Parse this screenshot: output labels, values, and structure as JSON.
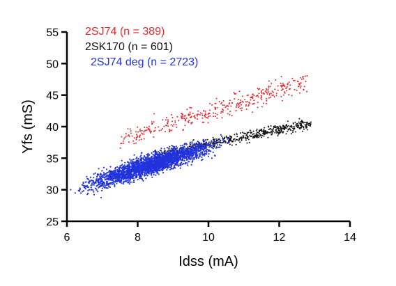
{
  "chart_data": {
    "type": "scatter",
    "xlabel": "Idss (mA)",
    "ylabel": "Yfs (mS)",
    "xlim": [
      6,
      14
    ],
    "ylim": [
      25,
      55
    ],
    "xticks": [
      "6",
      "8",
      "10",
      "12",
      "14"
    ],
    "yticks": [
      "25",
      "30",
      "35",
      "40",
      "45",
      "50",
      "55"
    ],
    "grid": false,
    "legend_position": "top-left",
    "series": [
      {
        "name": "2SJ74 (n = 389)",
        "color": "#e8262a",
        "n": 389,
        "x_range": [
          7.5,
          12.8
        ],
        "trend": {
          "x": [
            7.5,
            9.0,
            10.5,
            12.0,
            12.8
          ],
          "y": [
            38.0,
            40.5,
            43.0,
            46.0,
            47.2
          ]
        },
        "spread": 1.4
      },
      {
        "name": "2SK170 (n = 601)",
        "color": "#111111",
        "n": 601,
        "x_range": [
          8.5,
          12.9
        ],
        "trend": {
          "x": [
            8.5,
            10.0,
            11.5,
            12.9
          ],
          "y": [
            35.2,
            37.2,
            39.0,
            40.5
          ]
        },
        "spread": 0.7
      },
      {
        "name": "2SJ74 deg (n = 2723)",
        "color": "#2233dd",
        "n": 2723,
        "x_range": [
          6.0,
          10.7
        ],
        "trend": {
          "x": [
            6.0,
            7.0,
            8.0,
            9.0,
            10.0,
            10.7
          ],
          "y": [
            29.6,
            31.5,
            33.3,
            35.0,
            36.8,
            38.0
          ]
        },
        "spread": 1.3
      }
    ]
  }
}
